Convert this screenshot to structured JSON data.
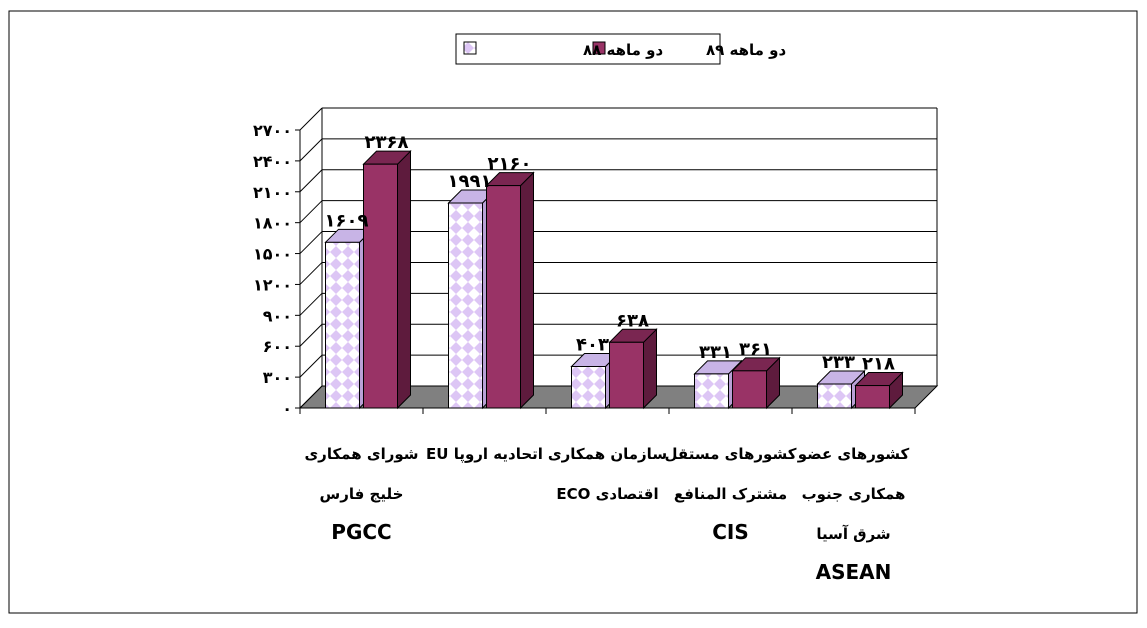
{
  "colors": {
    "series_88_fill": "#ddc6f5",
    "series_88_pattern": "#ffffff",
    "series_89_fill": "#993366",
    "series_89_side": "#5e1b3d",
    "series_89_top": "#7a2651",
    "floor": "#808080",
    "grid": "#000000"
  },
  "chart_data": {
    "type": "bar",
    "legend_position": "top-center",
    "legend": [
      "دو ماهه ۸۸",
      "دو ماهه ۸۹"
    ],
    "grid": true,
    "ylim": [
      0,
      2700
    ],
    "yticks": [
      0,
      300,
      600,
      900,
      1200,
      1500,
      1800,
      2100,
      2400,
      2700
    ],
    "ytick_labels": [
      "۰",
      "۳۰۰",
      "۶۰۰",
      "۹۰۰",
      "۱۲۰۰",
      "۱۵۰۰",
      "۱۸۰۰",
      "۲۱۰۰",
      "۲۴۰۰",
      "۲۷۰۰"
    ],
    "categories": [
      {
        "lines": [
          "شورای همکاری",
          "خلیج فارس",
          "PGCC"
        ]
      },
      {
        "lines": [
          "اتحادیه اروپا EU",
          "",
          ""
        ]
      },
      {
        "lines": [
          "سازمان همکاری",
          "اقتصادی ECO",
          ""
        ]
      },
      {
        "lines": [
          "کشورهای مستقل",
          "مشترک المنافع",
          "CIS"
        ]
      },
      {
        "lines": [
          "کشورهای عضو",
          "همکاری جنوب",
          "شرق آسیا",
          "ASEAN"
        ]
      }
    ],
    "series": [
      {
        "name": "دو ماهه ۸۸",
        "values": [
          1609,
          1991,
          403,
          331,
          233
        ],
        "labels": [
          "۱۶۰۹",
          "۱۹۹۱",
          "۴۰۳",
          "۳۳۱",
          "۲۳۳"
        ]
      },
      {
        "name": "دو ماهه ۸۹",
        "values": [
          2368,
          2160,
          638,
          361,
          218
        ],
        "labels": [
          "۲۳۶۸",
          "۲۱۶۰",
          "۶۳۸",
          "۳۶۱",
          "۲۱۸"
        ]
      }
    ]
  }
}
